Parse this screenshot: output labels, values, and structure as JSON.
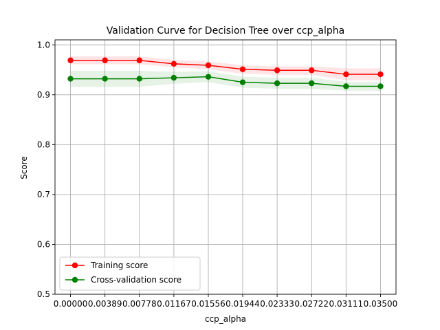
{
  "chart_data": {
    "type": "line",
    "title": "Validation Curve for Decision Tree over ccp_alpha",
    "xlabel": "ccp_alpha",
    "ylabel": "Score",
    "x": [
      0.0,
      0.00389,
      0.00778,
      0.01167,
      0.01556,
      0.01944,
      0.02333,
      0.02722,
      0.03111,
      0.035
    ],
    "xtick_labels": [
      "0.00000",
      "0.00389",
      "0.00778",
      "0.01167",
      "0.01556",
      "0.01944",
      "0.02333",
      "0.02722",
      "0.03111",
      "0.03500"
    ],
    "ylim": [
      0.5,
      1.01
    ],
    "yticks": [
      0.5,
      0.6,
      0.7,
      0.8,
      0.9,
      1.0
    ],
    "ytick_labels": [
      "0.5",
      "0.6",
      "0.7",
      "0.8",
      "0.9",
      "1.0"
    ],
    "grid": true,
    "legend_position": "lower-left",
    "series": [
      {
        "name": "Training score",
        "color": "#ff0000",
        "band_color": "#ff0000",
        "values": [
          0.969,
          0.969,
          0.969,
          0.962,
          0.959,
          0.951,
          0.949,
          0.949,
          0.941,
          0.941
        ],
        "band_lower": [
          0.961,
          0.961,
          0.961,
          0.955,
          0.951,
          0.942,
          0.94,
          0.94,
          0.929,
          0.929
        ],
        "band_upper": [
          0.977,
          0.977,
          0.977,
          0.97,
          0.967,
          0.959,
          0.957,
          0.957,
          0.953,
          0.953
        ]
      },
      {
        "name": "Cross-validation score",
        "color": "#008000",
        "band_color": "#008000",
        "values": [
          0.932,
          0.932,
          0.932,
          0.934,
          0.936,
          0.925,
          0.923,
          0.923,
          0.917,
          0.917
        ],
        "band_lower": [
          0.916,
          0.916,
          0.916,
          0.922,
          0.925,
          0.914,
          0.912,
          0.912,
          0.908,
          0.908
        ],
        "band_upper": [
          0.948,
          0.948,
          0.948,
          0.946,
          0.947,
          0.936,
          0.934,
          0.934,
          0.926,
          0.926
        ]
      }
    ]
  }
}
